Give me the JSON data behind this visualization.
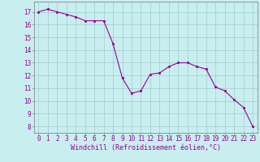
{
  "x": [
    0,
    1,
    2,
    3,
    4,
    5,
    6,
    7,
    8,
    9,
    10,
    11,
    12,
    13,
    14,
    15,
    16,
    17,
    18,
    19,
    20,
    21,
    22,
    23
  ],
  "y": [
    17.0,
    17.2,
    17.0,
    16.8,
    16.6,
    16.3,
    16.3,
    16.3,
    14.5,
    11.8,
    10.6,
    10.8,
    12.1,
    12.2,
    12.7,
    13.0,
    13.0,
    12.7,
    12.5,
    11.1,
    10.8,
    10.1,
    9.5,
    8.0
  ],
  "line_color": "#990099",
  "marker_color": "#990099",
  "bg_color": "#c8eef0",
  "grid_color": "#a0cccc",
  "xlabel": "Windchill (Refroidissement éolien,°C)",
  "ylim": [
    7.5,
    17.8
  ],
  "xlim": [
    -0.5,
    23.5
  ],
  "yticks": [
    8,
    9,
    10,
    11,
    12,
    13,
    14,
    15,
    16,
    17
  ],
  "xticks": [
    0,
    1,
    2,
    3,
    4,
    5,
    6,
    7,
    8,
    9,
    10,
    11,
    12,
    13,
    14,
    15,
    16,
    17,
    18,
    19,
    20,
    21,
    22,
    23
  ],
  "tick_label_color": "#990099",
  "tick_label_fontsize": 5.5,
  "xlabel_fontsize": 6.0,
  "axis_color": "#888888"
}
